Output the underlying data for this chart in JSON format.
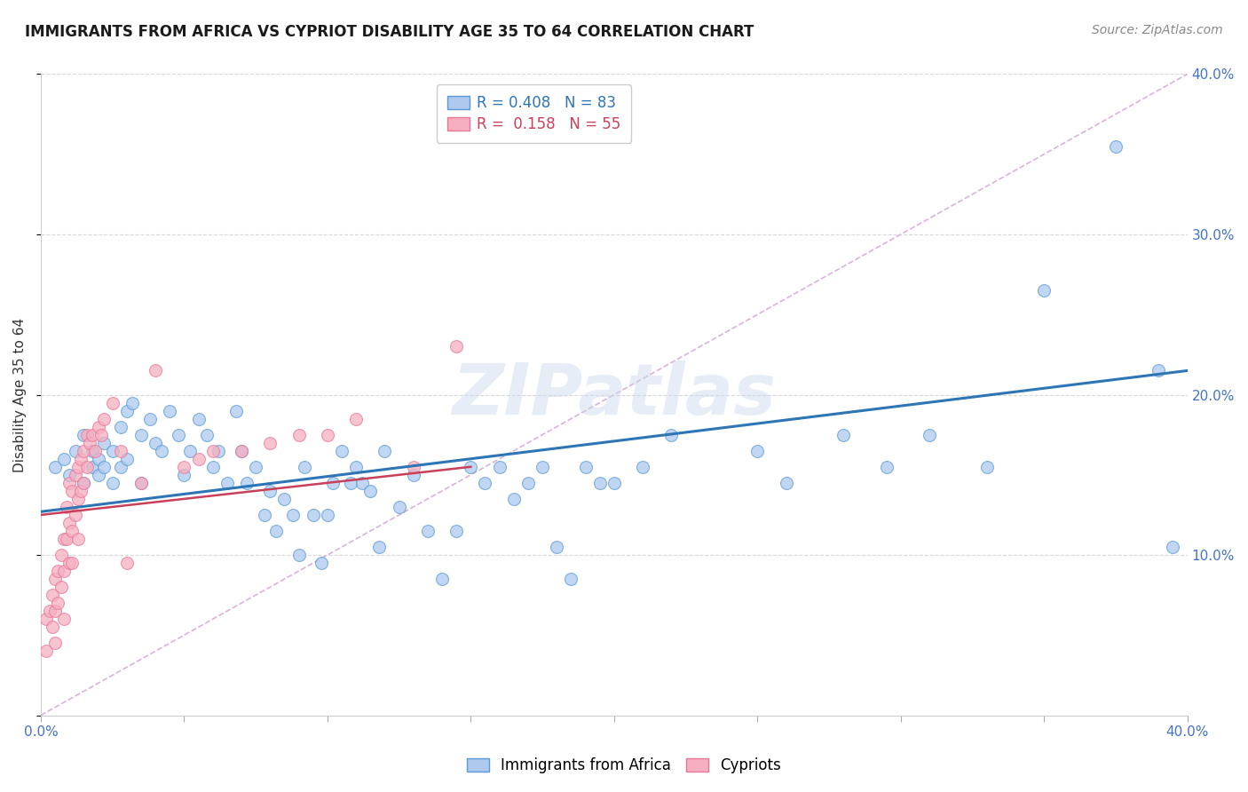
{
  "title": "IMMIGRANTS FROM AFRICA VS CYPRIOT DISABILITY AGE 35 TO 64 CORRELATION CHART",
  "source": "Source: ZipAtlas.com",
  "ylabel": "Disability Age 35 to 64",
  "xlim": [
    0.0,
    0.4
  ],
  "ylim": [
    0.0,
    0.4
  ],
  "xtick_vals": [
    0.0,
    0.05,
    0.1,
    0.15,
    0.2,
    0.25,
    0.3,
    0.35,
    0.4
  ],
  "xtick_labels": [
    "0.0%",
    "",
    "",
    "",
    "",
    "",
    "",
    "",
    "40.0%"
  ],
  "ytick_vals": [
    0.0,
    0.1,
    0.2,
    0.3,
    0.4
  ],
  "ytick_labels": [
    "",
    "10.0%",
    "20.0%",
    "30.0%",
    "40.0%"
  ],
  "blue_R": 0.408,
  "blue_N": 83,
  "pink_R": 0.158,
  "pink_N": 55,
  "blue_color": "#adc9ee",
  "pink_color": "#f5afc0",
  "blue_edge_color": "#5b9bd5",
  "pink_edge_color": "#e8789a",
  "blue_line_color": "#2e75b6",
  "pink_line_color": "#c9405a",
  "diag_line_color": "#d8b4d8",
  "watermark": "ZIPatlas",
  "legend_label_blue": "Immigrants from Africa",
  "legend_label_pink": "Cypriots",
  "blue_line_x0": 0.0,
  "blue_line_y0": 0.127,
  "blue_line_x1": 0.4,
  "blue_line_y1": 0.215,
  "pink_line_x0": 0.0,
  "pink_line_y0": 0.125,
  "pink_line_x1": 0.15,
  "pink_line_y1": 0.155,
  "blue_scatter_x": [
    0.005,
    0.008,
    0.01,
    0.012,
    0.015,
    0.015,
    0.018,
    0.018,
    0.02,
    0.02,
    0.022,
    0.022,
    0.025,
    0.025,
    0.028,
    0.028,
    0.03,
    0.03,
    0.032,
    0.035,
    0.035,
    0.038,
    0.04,
    0.042,
    0.045,
    0.048,
    0.05,
    0.052,
    0.055,
    0.058,
    0.06,
    0.062,
    0.065,
    0.068,
    0.07,
    0.072,
    0.075,
    0.078,
    0.08,
    0.082,
    0.085,
    0.088,
    0.09,
    0.092,
    0.095,
    0.098,
    0.1,
    0.102,
    0.105,
    0.108,
    0.11,
    0.112,
    0.115,
    0.118,
    0.12,
    0.125,
    0.13,
    0.135,
    0.14,
    0.145,
    0.15,
    0.155,
    0.16,
    0.165,
    0.17,
    0.175,
    0.18,
    0.185,
    0.19,
    0.195,
    0.2,
    0.21,
    0.22,
    0.25,
    0.26,
    0.28,
    0.295,
    0.31,
    0.33,
    0.35,
    0.375,
    0.39,
    0.395
  ],
  "blue_scatter_y": [
    0.155,
    0.16,
    0.15,
    0.165,
    0.145,
    0.175,
    0.155,
    0.165,
    0.15,
    0.16,
    0.155,
    0.17,
    0.145,
    0.165,
    0.155,
    0.18,
    0.16,
    0.19,
    0.195,
    0.145,
    0.175,
    0.185,
    0.17,
    0.165,
    0.19,
    0.175,
    0.15,
    0.165,
    0.185,
    0.175,
    0.155,
    0.165,
    0.145,
    0.19,
    0.165,
    0.145,
    0.155,
    0.125,
    0.14,
    0.115,
    0.135,
    0.125,
    0.1,
    0.155,
    0.125,
    0.095,
    0.125,
    0.145,
    0.165,
    0.145,
    0.155,
    0.145,
    0.14,
    0.105,
    0.165,
    0.13,
    0.15,
    0.115,
    0.085,
    0.115,
    0.155,
    0.145,
    0.155,
    0.135,
    0.145,
    0.155,
    0.105,
    0.085,
    0.155,
    0.145,
    0.145,
    0.155,
    0.175,
    0.165,
    0.145,
    0.175,
    0.155,
    0.175,
    0.155,
    0.265,
    0.355,
    0.215,
    0.105
  ],
  "pink_scatter_x": [
    0.002,
    0.002,
    0.003,
    0.004,
    0.004,
    0.005,
    0.005,
    0.005,
    0.006,
    0.006,
    0.007,
    0.007,
    0.008,
    0.008,
    0.008,
    0.009,
    0.009,
    0.01,
    0.01,
    0.01,
    0.011,
    0.011,
    0.011,
    0.012,
    0.012,
    0.013,
    0.013,
    0.013,
    0.014,
    0.014,
    0.015,
    0.015,
    0.016,
    0.016,
    0.017,
    0.018,
    0.019,
    0.02,
    0.021,
    0.022,
    0.025,
    0.028,
    0.03,
    0.035,
    0.04,
    0.05,
    0.055,
    0.06,
    0.07,
    0.08,
    0.09,
    0.1,
    0.11,
    0.13,
    0.145
  ],
  "pink_scatter_y": [
    0.06,
    0.04,
    0.065,
    0.075,
    0.055,
    0.085,
    0.065,
    0.045,
    0.09,
    0.07,
    0.1,
    0.08,
    0.11,
    0.09,
    0.06,
    0.13,
    0.11,
    0.145,
    0.12,
    0.095,
    0.14,
    0.115,
    0.095,
    0.15,
    0.125,
    0.155,
    0.135,
    0.11,
    0.16,
    0.14,
    0.165,
    0.145,
    0.175,
    0.155,
    0.17,
    0.175,
    0.165,
    0.18,
    0.175,
    0.185,
    0.195,
    0.165,
    0.095,
    0.145,
    0.215,
    0.155,
    0.16,
    0.165,
    0.165,
    0.17,
    0.175,
    0.175,
    0.185,
    0.155,
    0.23
  ]
}
